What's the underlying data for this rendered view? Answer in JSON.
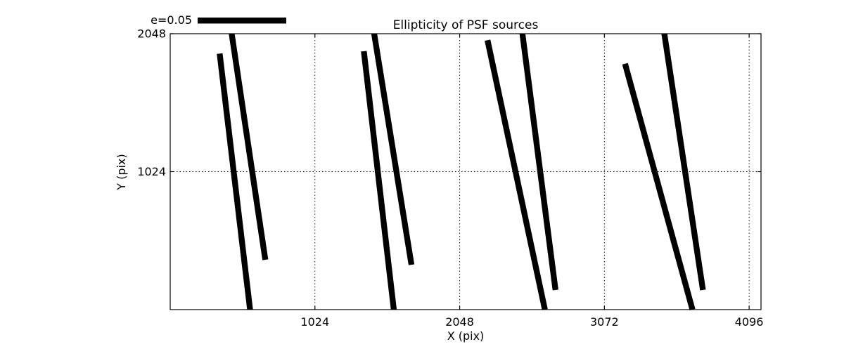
{
  "chart_data": {
    "type": "line",
    "subtype": "ellipticity-whisker-plot",
    "title": "Ellipticity of PSF sources",
    "xlabel": "X (pix)",
    "ylabel": "Y (pix)",
    "xlim": [
      0,
      4180
    ],
    "ylim": [
      0,
      2048
    ],
    "xticks": [
      1024,
      2048,
      3072,
      4096
    ],
    "yticks": [
      1024,
      2048
    ],
    "grid": {
      "visible": true,
      "style": "dotted"
    },
    "legend": {
      "label": "e=0.05",
      "position": "upper-left-outside"
    },
    "series": [
      {
        "name": "psf-ellipticity-whiskers",
        "style": "thick-black-segments",
        "segments": [
          [
            350,
            1900,
            565,
            0
          ],
          [
            435,
            2048,
            673,
            370
          ],
          [
            1370,
            1918,
            1582,
            0
          ],
          [
            1443,
            2048,
            1707,
            333
          ],
          [
            2245,
            2000,
            2651,
            0
          ],
          [
            2492,
            2048,
            2726,
            146
          ],
          [
            3218,
            1825,
            3695,
            0
          ],
          [
            3496,
            2048,
            3769,
            146
          ]
        ]
      }
    ],
    "colors": {
      "foreground": "#000000",
      "background": "#ffffff",
      "grid": "#000000"
    }
  }
}
